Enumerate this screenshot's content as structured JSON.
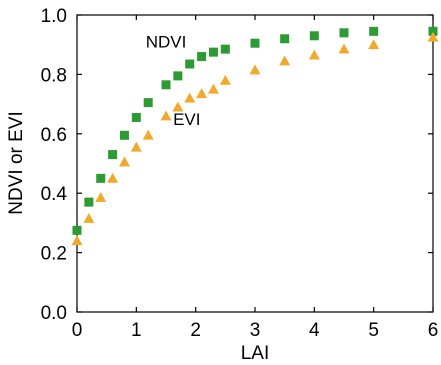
{
  "chart_data": {
    "type": "scatter",
    "xlabel": "LAI",
    "ylabel": "NDVI or EVI",
    "xlim": [
      0,
      6
    ],
    "ylim": [
      0,
      1
    ],
    "x_ticks": [
      "0",
      "1",
      "2",
      "3",
      "4",
      "5",
      "6"
    ],
    "y_ticks": [
      "0.0",
      "0.2",
      "0.4",
      "0.6",
      "0.8",
      "1.0"
    ],
    "grid": false,
    "legend": "none",
    "annotations": [
      {
        "text": "NDVI",
        "x": 1.5,
        "y": 0.89
      },
      {
        "text": "EVI",
        "x": 1.85,
        "y": 0.63
      }
    ],
    "series": [
      {
        "name": "NDVI",
        "marker": "square",
        "color": "#2e9a33",
        "x": [
          0,
          0.2,
          0.4,
          0.6,
          0.8,
          1.0,
          1.2,
          1.5,
          1.7,
          1.9,
          2.1,
          2.3,
          2.5,
          3.0,
          3.5,
          4.0,
          4.5,
          5.0,
          6.0
        ],
        "y": [
          0.275,
          0.37,
          0.45,
          0.53,
          0.595,
          0.655,
          0.705,
          0.765,
          0.795,
          0.835,
          0.86,
          0.875,
          0.885,
          0.905,
          0.92,
          0.93,
          0.94,
          0.945,
          0.945
        ]
      },
      {
        "name": "EVI",
        "marker": "triangle",
        "color": "#f0a92a",
        "x": [
          0,
          0.2,
          0.4,
          0.6,
          0.8,
          1.0,
          1.2,
          1.5,
          1.7,
          1.9,
          2.1,
          2.3,
          2.5,
          3.0,
          3.5,
          4.0,
          4.5,
          5.0,
          6.0
        ],
        "y": [
          0.24,
          0.315,
          0.385,
          0.45,
          0.505,
          0.555,
          0.595,
          0.66,
          0.69,
          0.72,
          0.735,
          0.75,
          0.78,
          0.815,
          0.845,
          0.865,
          0.885,
          0.9,
          0.925
        ]
      }
    ]
  }
}
